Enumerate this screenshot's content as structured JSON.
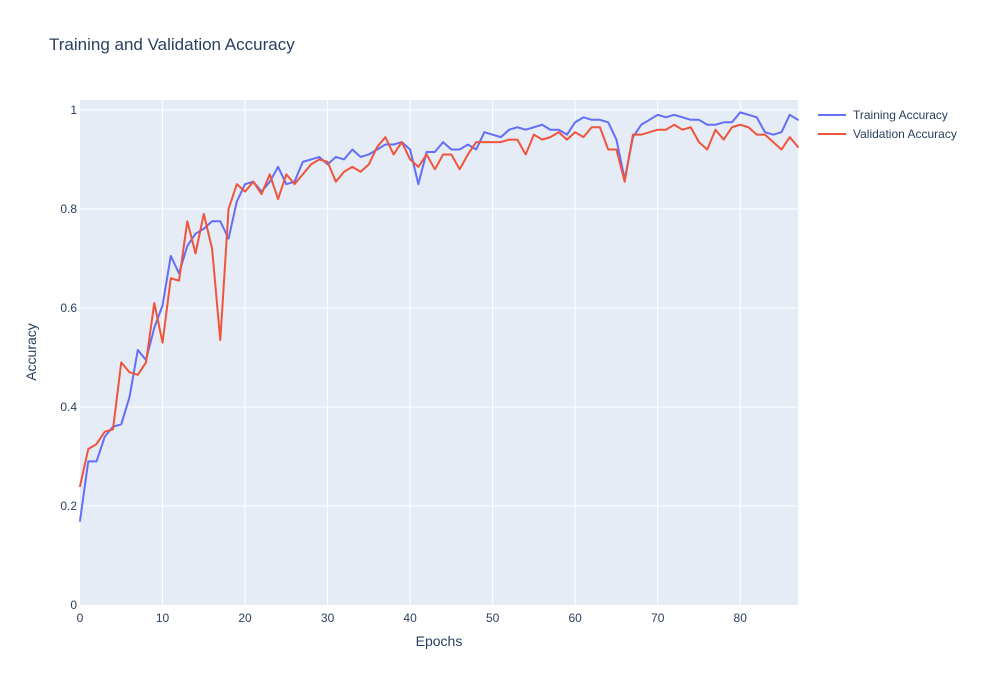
{
  "chart_data": {
    "type": "line",
    "title": "Training and Validation Accuracy",
    "xlabel": "Epochs",
    "ylabel": "Accuracy",
    "xlim": [
      0,
      87
    ],
    "ylim": [
      0,
      1.02
    ],
    "x_ticks": [
      0,
      10,
      20,
      30,
      40,
      50,
      60,
      70,
      80
    ],
    "y_ticks": [
      0,
      0.2,
      0.4,
      0.6,
      0.8,
      1
    ],
    "x_tick_labels": [
      "0",
      "10",
      "20",
      "30",
      "40",
      "50",
      "60",
      "70",
      "80"
    ],
    "y_tick_labels": [
      "0",
      "0.2",
      "0.4",
      "0.6",
      "0.8",
      "1"
    ],
    "grid": true,
    "legend_position": "top-right",
    "x": [
      0,
      1,
      2,
      3,
      4,
      5,
      6,
      7,
      8,
      9,
      10,
      11,
      12,
      13,
      14,
      15,
      16,
      17,
      18,
      19,
      20,
      21,
      22,
      23,
      24,
      25,
      26,
      27,
      28,
      29,
      30,
      31,
      32,
      33,
      34,
      35,
      36,
      37,
      38,
      39,
      40,
      41,
      42,
      43,
      44,
      45,
      46,
      47,
      48,
      49,
      50,
      51,
      52,
      53,
      54,
      55,
      56,
      57,
      58,
      59,
      60,
      61,
      62,
      63,
      64,
      65,
      66,
      67,
      68,
      69,
      70,
      71,
      72,
      73,
      74,
      75,
      76,
      77,
      78,
      79,
      80,
      81,
      82,
      83,
      84,
      85,
      86,
      87
    ],
    "series": [
      {
        "name": "Training Accuracy",
        "color": "#636efa",
        "values": [
          0.17,
          0.29,
          0.29,
          0.34,
          0.36,
          0.365,
          0.42,
          0.515,
          0.495,
          0.56,
          0.605,
          0.705,
          0.67,
          0.725,
          0.75,
          0.76,
          0.775,
          0.775,
          0.74,
          0.815,
          0.85,
          0.855,
          0.835,
          0.855,
          0.885,
          0.85,
          0.855,
          0.895,
          0.9,
          0.905,
          0.89,
          0.905,
          0.9,
          0.92,
          0.905,
          0.91,
          0.92,
          0.93,
          0.93,
          0.935,
          0.92,
          0.85,
          0.915,
          0.915,
          0.935,
          0.92,
          0.92,
          0.93,
          0.92,
          0.955,
          0.95,
          0.945,
          0.96,
          0.965,
          0.96,
          0.965,
          0.97,
          0.96,
          0.96,
          0.95,
          0.975,
          0.985,
          0.98,
          0.98,
          0.975,
          0.94,
          0.86,
          0.945,
          0.97,
          0.98,
          0.99,
          0.985,
          0.99,
          0.985,
          0.98,
          0.98,
          0.97,
          0.97,
          0.975,
          0.975,
          0.995,
          0.99,
          0.985,
          0.955,
          0.95,
          0.955,
          0.99,
          0.98
        ]
      },
      {
        "name": "Validation Accuracy",
        "color": "#ef553b",
        "values": [
          0.24,
          0.315,
          0.325,
          0.35,
          0.355,
          0.49,
          0.47,
          0.465,
          0.49,
          0.61,
          0.53,
          0.66,
          0.655,
          0.775,
          0.71,
          0.79,
          0.72,
          0.535,
          0.8,
          0.85,
          0.835,
          0.855,
          0.83,
          0.87,
          0.82,
          0.87,
          0.85,
          0.87,
          0.89,
          0.9,
          0.895,
          0.855,
          0.875,
          0.885,
          0.875,
          0.89,
          0.925,
          0.945,
          0.91,
          0.935,
          0.9,
          0.885,
          0.91,
          0.88,
          0.91,
          0.91,
          0.88,
          0.91,
          0.935,
          0.935,
          0.935,
          0.935,
          0.94,
          0.94,
          0.91,
          0.95,
          0.94,
          0.945,
          0.955,
          0.94,
          0.955,
          0.945,
          0.965,
          0.965,
          0.92,
          0.92,
          0.855,
          0.95,
          0.95,
          0.955,
          0.96,
          0.96,
          0.97,
          0.96,
          0.965,
          0.935,
          0.92,
          0.96,
          0.94,
          0.965,
          0.97,
          0.965,
          0.95,
          0.95,
          0.935,
          0.92,
          0.945,
          0.925
        ]
      }
    ]
  }
}
